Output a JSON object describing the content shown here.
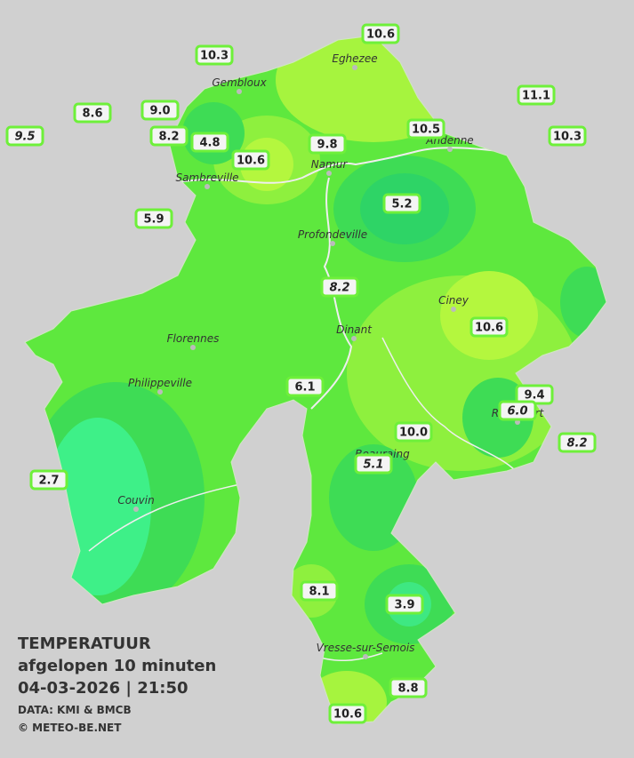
{
  "title": {
    "line1": "TEMPERATUUR",
    "line2": "afgelopen 10 minuten",
    "datetime": "04-03-2026  |  21:50",
    "credit1": "DATA: KMI & BMCB",
    "credit2": "© METEO-BE.NET"
  },
  "cities": [
    "Eghezee",
    "Gembloux",
    "Andenne",
    "Namur",
    "Sambreville",
    "Profondeville",
    "Ciney",
    "Dinant",
    "Florennes",
    "Philippeville",
    "Rochefort",
    "Beauraing",
    "Couvin",
    "Vresse-sur-Semois"
  ],
  "stations": [
    "10.6",
    "10.3",
    "11.1",
    "8.6",
    "9.0",
    "9.5",
    "8.2",
    "4.8",
    "10.6",
    "9.8",
    "10.5",
    "10.3",
    "5.2",
    "5.9",
    "8.2",
    "10.6",
    "6.1",
    "9.4",
    "6.0",
    "10.0",
    "8.2",
    "5.1",
    "2.7",
    "8.1",
    "3.9",
    "8.8",
    "10.6"
  ]
}
